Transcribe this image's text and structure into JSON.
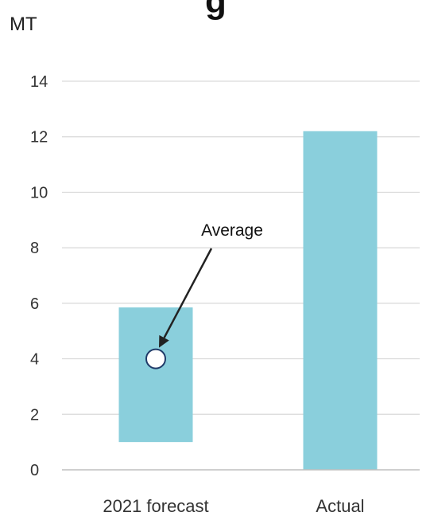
{
  "chart_data": {
    "type": "bar",
    "title_fragment": "g",
    "ylabel": "MT",
    "categories": [
      "2021 forecast",
      "Actual"
    ],
    "ranges": [
      {
        "category": "2021 forecast",
        "low": 1.0,
        "high": 5.85
      },
      {
        "category": "Actual",
        "low": 0,
        "high": 12.2
      }
    ],
    "average": {
      "category": "2021 forecast",
      "value": 4.0,
      "label": "Average"
    },
    "y_ticks": [
      0,
      2,
      4,
      6,
      8,
      10,
      12,
      14
    ],
    "ylim": [
      0,
      14
    ],
    "grid": true,
    "colors": {
      "bar": "#8ACFDC",
      "grid": "#D9D9D9",
      "axis": "#BFBFBF",
      "marker_stroke": "#1F3A68",
      "marker_fill": "#FFFFFF",
      "arrow": "#222222"
    }
  }
}
